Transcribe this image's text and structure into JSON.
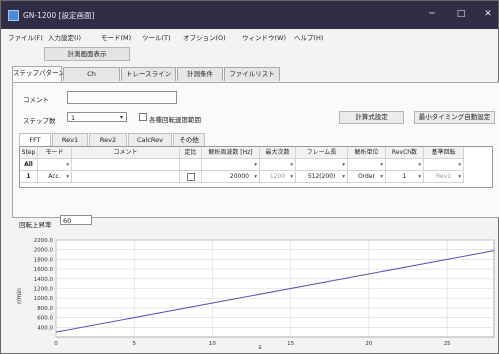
{
  "window": {
    "title": "GN-1200 [設定画面]",
    "controls": [
      "─",
      "□",
      "✕"
    ]
  },
  "menu": [
    {
      "label": "ファイル(F)"
    },
    {
      "label": "入力設定(I)"
    },
    {
      "label": "モード(M)"
    },
    {
      "label": "ツール(T)"
    },
    {
      "label": "オプション(O)"
    },
    {
      "label": "ウィンドウ(W)"
    },
    {
      "label": "ヘルプ(H)"
    }
  ],
  "toolbar": {
    "show_measure_label": "計測画面表示"
  },
  "tabs": [
    {
      "label": "ステップパターン",
      "active": true
    },
    {
      "label": "Ch",
      "active": false
    },
    {
      "label": "トレースライン",
      "active": false
    },
    {
      "label": "計測条件",
      "active": false
    },
    {
      "label": "ファイルリスト",
      "active": false
    }
  ],
  "form": {
    "comment_label": "コメント",
    "comment_value": "",
    "steps_label": "ステップ数",
    "steps_value": "1",
    "per_rotation_label": "各種回転速度範囲",
    "per_rotation_checked": false,
    "calc_button": "計算式設定",
    "min_timing_button": "最小タイミング自動設定"
  },
  "subtabs": [
    {
      "label": "FFT",
      "active": true
    },
    {
      "label": "Rev1",
      "active": false
    },
    {
      "label": "Rev2",
      "active": false
    },
    {
      "label": "CalcRev",
      "active": false
    },
    {
      "label": "その他",
      "active": false
    }
  ],
  "grid": {
    "headers": [
      "Step",
      "モード",
      "コメント",
      "定比",
      "解析周波数 [Hz]",
      "最大次数",
      "フレーム長",
      "解析単位",
      "RevCh数",
      "基準回転"
    ],
    "rows": [
      [
        "All",
        "",
        "",
        "",
        "",
        "",
        "",
        "",
        "",
        ""
      ],
      [
        "1",
        "Acc.",
        "",
        "",
        "20000",
        "1200",
        "512(200)",
        "Order",
        "1",
        "Rev1"
      ]
    ]
  },
  "rise_rate": {
    "label": "回転上昇率",
    "value": "60"
  },
  "chart_data": {
    "type": "line",
    "title": "",
    "xlabel": "s",
    "ylabel": "r/min",
    "xlim": [
      0,
      28
    ],
    "ylim": [
      200,
      2200
    ],
    "x_ticks": [
      0,
      5,
      10,
      15,
      20,
      25
    ],
    "y_ticks": [
      400.0,
      600.0,
      800.0,
      1000.0,
      1200.0,
      1400.0,
      1600.0,
      1800.0,
      2000.0,
      2200.0
    ],
    "grid": true,
    "series": [
      {
        "x": [
          0,
          28
        ],
        "values": [
          300,
          1980
        ],
        "color": "#5555bb"
      }
    ]
  }
}
